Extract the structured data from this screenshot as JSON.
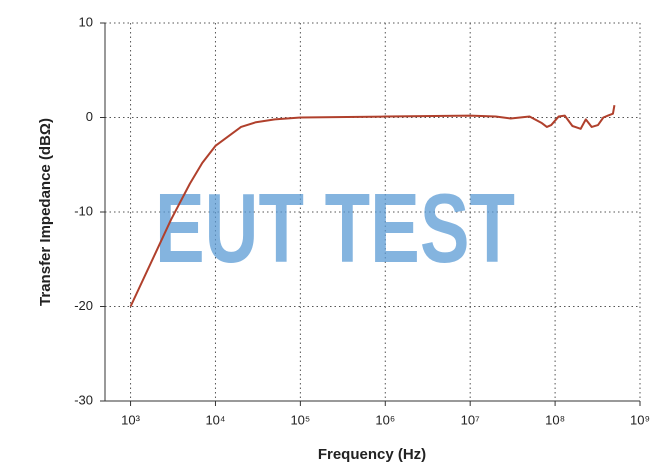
{
  "chart_data": {
    "type": "line",
    "xlabel": "Frequency (Hz)",
    "ylabel": "Transfer Impedance (dBΩ)",
    "watermark": "EUT TEST",
    "xscale": "log",
    "grid": true,
    "color": "#b0402c",
    "x": [
      1000,
      2000,
      3000,
      5000,
      7000,
      10000,
      20000,
      30000,
      50000,
      100000,
      1000000,
      10000000,
      20000000,
      30000000,
      50000000,
      70000000,
      80000000,
      90000000,
      110000000,
      130000000,
      160000000,
      200000000,
      230000000,
      270000000,
      320000000,
      370000000,
      420000000,
      480000000,
      500000000
    ],
    "values": [
      -20,
      -14.2,
      -10.8,
      -7,
      -4.8,
      -3,
      -1,
      -0.5,
      -0.2,
      0,
      0.1,
      0.2,
      0.1,
      -0.1,
      0.1,
      -0.6,
      -1,
      -0.8,
      0.1,
      0.2,
      -0.9,
      -1.2,
      -0.2,
      -1,
      -0.8,
      0,
      0.2,
      0.4,
      1.3
    ],
    "xlim": [
      500,
      1000000000
    ],
    "xticks": [
      {
        "value": 1000,
        "label": "10³"
      },
      {
        "value": 10000,
        "label": "10⁴"
      },
      {
        "value": 100000,
        "label": "10⁵"
      },
      {
        "value": 1000000,
        "label": "10⁶"
      },
      {
        "value": 10000000,
        "label": "10⁷"
      },
      {
        "value": 100000000,
        "label": "10⁸"
      },
      {
        "value": 1000000000,
        "label": "10⁹"
      }
    ],
    "ylim": [
      -30,
      10
    ],
    "yticks": [
      10,
      0,
      -10,
      -20,
      -30
    ]
  }
}
